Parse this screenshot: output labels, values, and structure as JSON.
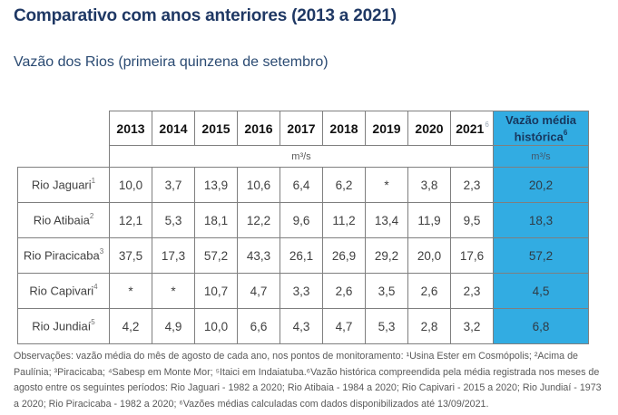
{
  "colors": {
    "accent_blue": "#32ace2",
    "title_navy": "#1f3864",
    "border_gray": "#7f7f7f",
    "body_text": "#404040",
    "muted_text": "#595959"
  },
  "page": {
    "title": "Comparativo com anos anteriores (2013 a 2021)",
    "subtitle": "Vazão dos Rios (primeira quinzena de setembro)"
  },
  "table": {
    "unit_label": "m³/s",
    "historical_header": {
      "label": "Vazão média histórica",
      "sup": "6",
      "unit": "m³/s"
    },
    "years": [
      {
        "label": "2013",
        "sup": ""
      },
      {
        "label": "2014",
        "sup": ""
      },
      {
        "label": "2015",
        "sup": ""
      },
      {
        "label": "2016",
        "sup": ""
      },
      {
        "label": "2017",
        "sup": ""
      },
      {
        "label": "2018",
        "sup": ""
      },
      {
        "label": "2019",
        "sup": ""
      },
      {
        "label": "2020",
        "sup": ""
      },
      {
        "label": "2021",
        "sup": "6"
      }
    ],
    "rows": [
      {
        "name": "Rio Jaguari",
        "sup": "1",
        "values": [
          "10,0",
          "3,7",
          "13,9",
          "10,6",
          "6,4",
          "6,2",
          "*",
          "3,8",
          "2,3"
        ],
        "historical": "20,2"
      },
      {
        "name": "Rio Atibaia",
        "sup": "2",
        "values": [
          "12,1",
          "5,3",
          "18,1",
          "12,2",
          "9,6",
          "11,2",
          "13,4",
          "11,9",
          "9,5"
        ],
        "historical": "18,3"
      },
      {
        "name": "Rio Piracicaba",
        "sup": "3",
        "values": [
          "37,5",
          "17,3",
          "57,2",
          "43,3",
          "26,1",
          "26,9",
          "29,2",
          "20,0",
          "17,6"
        ],
        "historical": "57,2"
      },
      {
        "name": "Rio Capivari",
        "sup": "4",
        "values": [
          "*",
          "*",
          "10,7",
          "4,7",
          "3,3",
          "2,6",
          "3,5",
          "2,6",
          "2,3"
        ],
        "historical": "4,5"
      },
      {
        "name": "Rio Jundiaí",
        "sup": "5",
        "values": [
          "4,2",
          "4,9",
          "10,0",
          "6,6",
          "4,3",
          "4,7",
          "5,3",
          "2,8",
          "3,2"
        ],
        "historical": "6,8"
      }
    ]
  },
  "footnote": {
    "text": "Observações: vazão média do mês de agosto de cada ano, nos pontos de monitoramento: ¹Usina Ester em Cosmópolis; ²Acima de Paulínia; ³Piracicaba; ⁴Sabesp em Monte Mor; ⁵Itaici em Indaiatuba.⁶Vazão histórica compreendida pela média registrada nos meses de agosto entre os seguintes períodos: Rio Jaguari - 1982 a 2020; Rio Atibaia - 1984 a 2020; Rio Capivari - 2015 a 2020; Rio Jundiaí - 1973 a 2020; Rio Piracicaba - 1982 a 2020; ⁶Vazões médias calculadas com dados disponibilizados até 13/09/2021."
  }
}
